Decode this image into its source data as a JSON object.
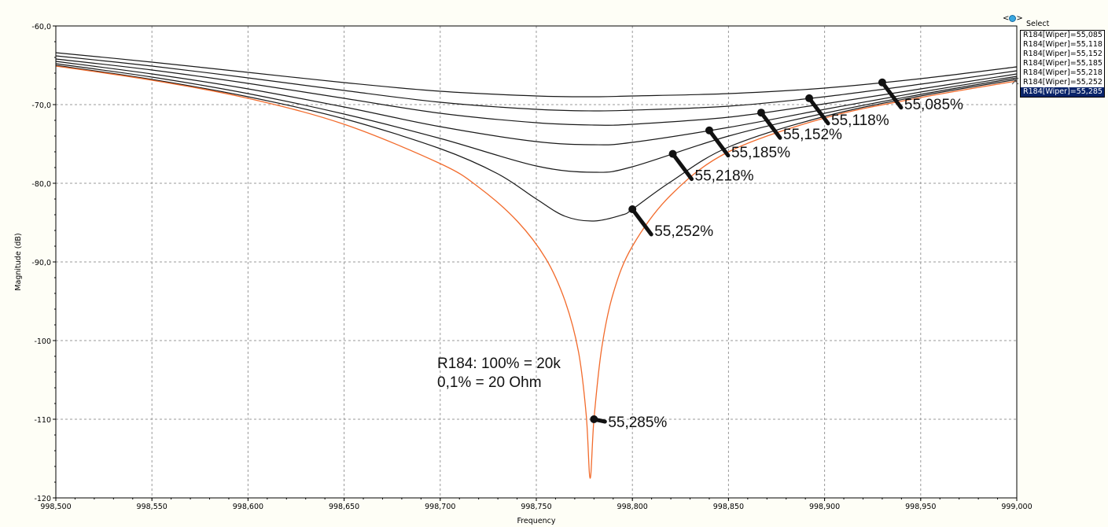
{
  "chart_data": {
    "type": "line",
    "xlabel": "Frequency",
    "ylabel": "Magnitude (dB)",
    "xlim": [
      998500,
      999000
    ],
    "ylim": [
      -120,
      -60
    ],
    "x_ticks": [
      998500,
      998550,
      998600,
      998650,
      998700,
      998750,
      998800,
      998850,
      998900,
      998950,
      999000
    ],
    "x_tick_labels": [
      "998,500",
      "998,550",
      "998,600",
      "998,650",
      "998,700",
      "998,750",
      "998,800",
      "998,850",
      "998,900",
      "998,950",
      "999,000"
    ],
    "y_ticks": [
      -60,
      -70,
      -80,
      -90,
      -100,
      -110,
      -120
    ],
    "y_tick_labels": [
      "-60,0",
      "-70,0",
      "-80,0",
      "-90,0",
      "-100",
      "-110",
      "-120"
    ],
    "grid": true,
    "legend_position": "right",
    "series": [
      {
        "name": "R184[Wiper]=55,085",
        "color": "#1a1a1a",
        "label": "55,085%",
        "label_x": 998930,
        "x": [
          998500,
          998550,
          998600,
          998650,
          998700,
          998750,
          998780,
          998800,
          998850,
          998900,
          998950,
          999000
        ],
        "y": [
          -63.4,
          -64.6,
          -65.9,
          -67.2,
          -68.3,
          -68.9,
          -69.0,
          -68.9,
          -68.6,
          -67.9,
          -66.7,
          -65.2
        ]
      },
      {
        "name": "R184[Wiper]=55,118",
        "color": "#1a1a1a",
        "label": "55,118%",
        "label_x": 998892,
        "x": [
          998500,
          998550,
          998600,
          998650,
          998700,
          998750,
          998780,
          998800,
          998850,
          998900,
          998950,
          999000
        ],
        "y": [
          -63.8,
          -65.1,
          -66.6,
          -68.2,
          -69.7,
          -70.6,
          -70.8,
          -70.7,
          -70.2,
          -69.0,
          -67.4,
          -65.7
        ]
      },
      {
        "name": "R184[Wiper]=55,152",
        "color": "#1a1a1a",
        "label": "55,152%",
        "label_x": 998867,
        "x": [
          998500,
          998550,
          998600,
          998650,
          998700,
          998750,
          998780,
          998800,
          998850,
          998900,
          998950,
          999000
        ],
        "y": [
          -64.2,
          -65.6,
          -67.3,
          -69.2,
          -71.1,
          -72.3,
          -72.6,
          -72.5,
          -71.6,
          -69.9,
          -68.0,
          -66.1
        ]
      },
      {
        "name": "R184[Wiper]=55,185",
        "color": "#1a1a1a",
        "label": "55,185%",
        "label_x": 998840,
        "x": [
          998500,
          998550,
          998600,
          998650,
          998700,
          998750,
          998780,
          998800,
          998850,
          998900,
          998950,
          999000
        ],
        "y": [
          -64.5,
          -66.1,
          -68.0,
          -70.3,
          -72.8,
          -74.7,
          -75.1,
          -74.8,
          -72.9,
          -70.6,
          -68.4,
          -66.4
        ]
      },
      {
        "name": "R184[Wiper]=55,218",
        "color": "#1a1a1a",
        "label": "55,218%",
        "label_x": 998821,
        "x": [
          998500,
          998550,
          998600,
          998650,
          998700,
          998750,
          998780,
          998800,
          998850,
          998900,
          998950,
          999000
        ],
        "y": [
          -64.8,
          -66.5,
          -68.6,
          -71.2,
          -74.3,
          -77.8,
          -78.6,
          -77.9,
          -74.0,
          -71.1,
          -68.7,
          -66.6
        ]
      },
      {
        "name": "R184[Wiper]=55,252",
        "color": "#1a1a1a",
        "label": "55,252%",
        "label_x": 998800,
        "x": [
          998500,
          998550,
          998600,
          998650,
          998700,
          998730,
          998750,
          998765,
          998780,
          998795,
          998800,
          998820,
          998850,
          998900,
          998950,
          999000
        ],
        "y": [
          -65.0,
          -66.8,
          -69.0,
          -71.8,
          -75.6,
          -78.8,
          -82.0,
          -84.2,
          -84.8,
          -84.0,
          -83.3,
          -79.8,
          -75.4,
          -71.5,
          -68.9,
          -66.8
        ]
      },
      {
        "name": "R184[Wiper]=55,285",
        "color": "#f26b2c",
        "label": "55,285%",
        "label_x": 998780,
        "x": [
          998500,
          998550,
          998600,
          998650,
          998700,
          998720,
          998740,
          998755,
          998765,
          998772,
          998776,
          998778,
          998780,
          998784,
          998790,
          998800,
          998820,
          998850,
          998900,
          998950,
          999000
        ],
        "y": [
          -65.1,
          -66.9,
          -69.2,
          -72.5,
          -77.5,
          -80.5,
          -84.8,
          -89.6,
          -95.0,
          -101.5,
          -109.5,
          -117.5,
          -110.0,
          -101.0,
          -94.0,
          -88.0,
          -81.5,
          -76.0,
          -71.7,
          -69.1,
          -67.0
        ]
      }
    ],
    "annotations": [
      "R184: 100% = 20k",
      "0,1% = 20 Ohm"
    ],
    "legend": {
      "title": "Select",
      "selected_index": 6
    }
  }
}
